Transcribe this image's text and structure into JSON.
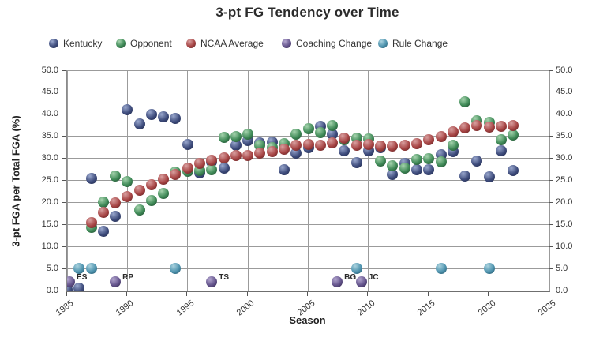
{
  "title": "3-pt FG Tendency over Time",
  "legend": [
    {
      "id": "kentucky",
      "label": "Kentucky"
    },
    {
      "id": "opponent",
      "label": "Opponent"
    },
    {
      "id": "ncaa-average",
      "label": "NCAA Average"
    },
    {
      "id": "coaching-change",
      "label": "Coaching Change"
    },
    {
      "id": "rule-change",
      "label": "Rule Change"
    }
  ],
  "colors": {
    "kentucky": {
      "base": "#3E4C7C",
      "light": "#9AA8CE",
      "dark": "#1C2445"
    },
    "opponent": {
      "base": "#3F8A57",
      "light": "#A6D4AE",
      "dark": "#1C4129"
    },
    "ncaa-average": {
      "base": "#A64444",
      "light": "#D9A0A0",
      "dark": "#571D1D"
    },
    "coaching-change": {
      "base": "#64548C",
      "light": "#B3A6CF",
      "dark": "#2E2347"
    },
    "rule-change": {
      "base": "#4E93AE",
      "light": "#ABD3DF",
      "dark": "#1F4E61"
    },
    "gridline": "#9B9B9B",
    "axis": "#6F6F6F",
    "text": "#333333"
  },
  "chart_data": {
    "type": "scatter",
    "title": "3-pt FG Tendency over Time",
    "xlabel": "Season",
    "ylabel": "3-pt FGA per Total FGA (%)",
    "xlim": [
      1985,
      2025
    ],
    "ylim": [
      0,
      50
    ],
    "x_ticks": [
      1985,
      1990,
      1995,
      2000,
      2005,
      2010,
      2015,
      2020,
      2025
    ],
    "y_ticks": [
      0,
      5,
      10,
      15,
      20,
      25,
      30,
      35,
      40,
      45,
      50
    ],
    "grid": true,
    "legend_position": "top",
    "series": [
      {
        "name": "Kentucky",
        "points": [
          [
            1985,
            0.2
          ],
          [
            1986,
            0.5
          ],
          [
            1987,
            25.5
          ],
          [
            1988,
            13.5
          ],
          [
            1989,
            16.8
          ],
          [
            1990,
            41.0
          ],
          [
            1991,
            37.9
          ],
          [
            1992,
            39.9
          ],
          [
            1993,
            39.4
          ],
          [
            1994,
            39.0
          ],
          [
            1995,
            33.1
          ],
          [
            1996,
            26.7
          ],
          [
            1997,
            29.2
          ],
          [
            1998,
            27.7
          ],
          [
            1999,
            33.0
          ],
          [
            2000,
            34.1
          ],
          [
            2001,
            33.5
          ],
          [
            2002,
            33.7
          ],
          [
            2003,
            27.5
          ],
          [
            2004,
            31.2
          ],
          [
            2005,
            32.5
          ],
          [
            2006,
            37.2
          ],
          [
            2007,
            35.4
          ],
          [
            2008,
            31.7
          ],
          [
            2009,
            29.1
          ],
          [
            2010,
            31.7
          ],
          [
            2011,
            32.4
          ],
          [
            2012,
            26.3
          ],
          [
            2013,
            28.8
          ],
          [
            2014,
            27.4
          ],
          [
            2015,
            27.5
          ],
          [
            2016,
            30.9
          ],
          [
            2017,
            31.6
          ],
          [
            2018,
            25.9
          ],
          [
            2019,
            29.4
          ],
          [
            2020,
            25.8
          ],
          [
            2021,
            31.8
          ],
          [
            2022,
            27.2
          ]
        ]
      },
      {
        "name": "Opponent",
        "points": [
          [
            1987,
            14.3
          ],
          [
            1988,
            20.0
          ],
          [
            1989,
            26.0
          ],
          [
            1990,
            24.8
          ],
          [
            1991,
            18.2
          ],
          [
            1992,
            20.5
          ],
          [
            1993,
            22.0
          ],
          [
            1994,
            26.8
          ],
          [
            1995,
            27.0
          ],
          [
            1996,
            27.2
          ],
          [
            1997,
            27.4
          ],
          [
            1998,
            34.7
          ],
          [
            1999,
            35.0
          ],
          [
            2000,
            35.4
          ],
          [
            2001,
            33.0
          ],
          [
            2002,
            32.5
          ],
          [
            2003,
            33.4
          ],
          [
            2004,
            35.5
          ],
          [
            2005,
            36.7
          ],
          [
            2006,
            35.8
          ],
          [
            2007,
            37.4
          ],
          [
            2008,
            34.3
          ],
          [
            2009,
            34.5
          ],
          [
            2010,
            34.4
          ],
          [
            2011,
            29.4
          ],
          [
            2012,
            28.4
          ],
          [
            2013,
            27.8
          ],
          [
            2014,
            29.8
          ],
          [
            2015,
            30.0
          ],
          [
            2016,
            29.2
          ],
          [
            2017,
            33.0
          ],
          [
            2018,
            42.8
          ],
          [
            2019,
            38.6
          ],
          [
            2020,
            38.2
          ],
          [
            2021,
            34.2
          ],
          [
            2022,
            35.3
          ]
        ]
      },
      {
        "name": "NCAA Average",
        "points": [
          [
            1987,
            15.5
          ],
          [
            1988,
            17.8
          ],
          [
            1989,
            19.9
          ],
          [
            1990,
            21.4
          ],
          [
            1991,
            22.7
          ],
          [
            1992,
            24.0
          ],
          [
            1993,
            25.3
          ],
          [
            1994,
            26.4
          ],
          [
            1995,
            27.8
          ],
          [
            1996,
            28.8
          ],
          [
            1997,
            29.5
          ],
          [
            1998,
            30.1
          ],
          [
            1999,
            30.6
          ],
          [
            2000,
            30.7
          ],
          [
            2001,
            31.2
          ],
          [
            2002,
            31.6
          ],
          [
            2003,
            32.1
          ],
          [
            2004,
            32.9
          ],
          [
            2005,
            33.1
          ],
          [
            2006,
            32.9
          ],
          [
            2007,
            33.6
          ],
          [
            2008,
            34.5
          ],
          [
            2009,
            32.9
          ],
          [
            2010,
            33.1
          ],
          [
            2011,
            32.8
          ],
          [
            2012,
            32.8
          ],
          [
            2013,
            32.9
          ],
          [
            2014,
            33.3
          ],
          [
            2015,
            34.3
          ],
          [
            2016,
            35.0
          ],
          [
            2017,
            36.0
          ],
          [
            2018,
            36.9
          ],
          [
            2019,
            37.5
          ],
          [
            2020,
            37.1
          ],
          [
            2021,
            37.2
          ],
          [
            2022,
            37.5
          ]
        ]
      }
    ],
    "coaching_changes": [
      {
        "label": "ES",
        "year": 1985.2,
        "value": 2.0
      },
      {
        "label": "RP",
        "year": 1989,
        "value": 2.0
      },
      {
        "label": "TS",
        "year": 1997,
        "value": 2.0
      },
      {
        "label": "BG",
        "year": 2007.4,
        "value": 2.0
      },
      {
        "label": "JC",
        "year": 2009.4,
        "value": 2.0
      }
    ],
    "rule_changes": [
      {
        "year": 1986,
        "value": 5.0
      },
      {
        "year": 1987,
        "value": 5.0
      },
      {
        "year": 1994,
        "value": 5.0
      },
      {
        "year": 2009,
        "value": 5.0
      },
      {
        "year": 2016,
        "value": 5.0
      },
      {
        "year": 2020,
        "value": 5.0
      }
    ]
  }
}
